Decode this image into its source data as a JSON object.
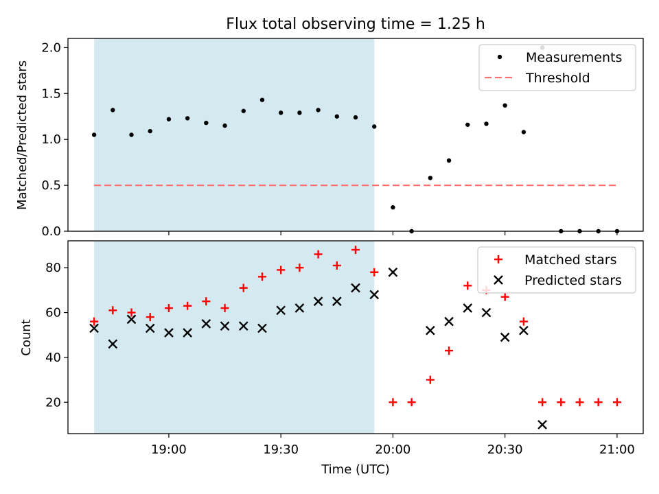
{
  "chart_data": [
    {
      "type": "scatter",
      "title": "Flux total observing time = 1.25 h",
      "xlabel": "",
      "ylabel": "Matched/Predicted stars",
      "xlim_minutes": [
        1113,
        1267
      ],
      "ylim": [
        0,
        2.1
      ],
      "y_ticks": [
        0.0,
        0.5,
        1.0,
        1.5,
        2.0
      ],
      "y_tick_labels": [
        "0.0",
        "0.5",
        "1.0",
        "1.5",
        "2.0"
      ],
      "shaded_span_minutes": [
        1120,
        1195
      ],
      "shaded_color": "#d4eaf0",
      "series": [
        {
          "name": "Measurements",
          "marker": "dot",
          "color": "#000000",
          "x_minutes": [
            1120,
            1125,
            1130,
            1135,
            1140,
            1145,
            1150,
            1155,
            1160,
            1165,
            1170,
            1175,
            1180,
            1185,
            1190,
            1195,
            1200,
            1205,
            1210,
            1215,
            1220,
            1225,
            1230,
            1235,
            1240,
            1245,
            1250,
            1255,
            1260
          ],
          "values": [
            1.05,
            1.32,
            1.05,
            1.09,
            1.22,
            1.23,
            1.18,
            1.15,
            1.31,
            1.43,
            1.29,
            1.29,
            1.32,
            1.25,
            1.24,
            1.14,
            0.26,
            0.0,
            0.58,
            0.77,
            1.16,
            1.17,
            1.37,
            1.08,
            2.0,
            0.0,
            0.0,
            0.0,
            0.0
          ]
        },
        {
          "name": "Threshold",
          "marker": "dashed-line",
          "color": "#ff7070",
          "x_minutes": [
            1120,
            1260
          ],
          "values": [
            0.5,
            0.5
          ]
        }
      ],
      "legend": "top-right"
    },
    {
      "type": "scatter",
      "title": "",
      "xlabel": "Time (UTC)",
      "ylabel": "Count",
      "xlim_minutes": [
        1113,
        1267
      ],
      "ylim": [
        6,
        92
      ],
      "y_ticks": [
        20,
        40,
        60,
        80
      ],
      "y_tick_labels": [
        "20",
        "40",
        "60",
        "80"
      ],
      "x_ticks_minutes": [
        1140,
        1170,
        1200,
        1230,
        1260
      ],
      "x_tick_labels": [
        "19:00",
        "19:30",
        "20:00",
        "20:30",
        "21:00"
      ],
      "shaded_span_minutes": [
        1120,
        1195
      ],
      "shaded_color": "#d4eaf0",
      "series": [
        {
          "name": "Matched stars",
          "marker": "plus",
          "color": "#ff0000",
          "x_minutes": [
            1120,
            1125,
            1130,
            1135,
            1140,
            1145,
            1150,
            1155,
            1160,
            1165,
            1170,
            1175,
            1180,
            1185,
            1190,
            1195,
            1200,
            1205,
            1210,
            1215,
            1220,
            1225,
            1230,
            1235,
            1240,
            1245,
            1250,
            1255,
            1260
          ],
          "values": [
            56,
            61,
            60,
            58,
            62,
            63,
            65,
            62,
            71,
            76,
            79,
            80,
            86,
            81,
            88,
            78,
            20,
            20,
            30,
            43,
            72,
            70,
            67,
            56,
            20,
            20,
            20,
            20,
            20
          ]
        },
        {
          "name": "Predicted stars",
          "marker": "x",
          "color": "#000000",
          "x_minutes": [
            1120,
            1125,
            1130,
            1135,
            1140,
            1145,
            1150,
            1155,
            1160,
            1165,
            1170,
            1175,
            1180,
            1185,
            1190,
            1195,
            1200,
            1210,
            1215,
            1220,
            1225,
            1230,
            1235,
            1240
          ],
          "values": [
            53,
            46,
            57,
            53,
            51,
            51,
            55,
            54,
            54,
            53,
            61,
            62,
            65,
            65,
            71,
            68,
            78,
            52,
            56,
            62,
            60,
            49,
            52,
            10
          ]
        }
      ],
      "legend": "top-right"
    }
  ]
}
